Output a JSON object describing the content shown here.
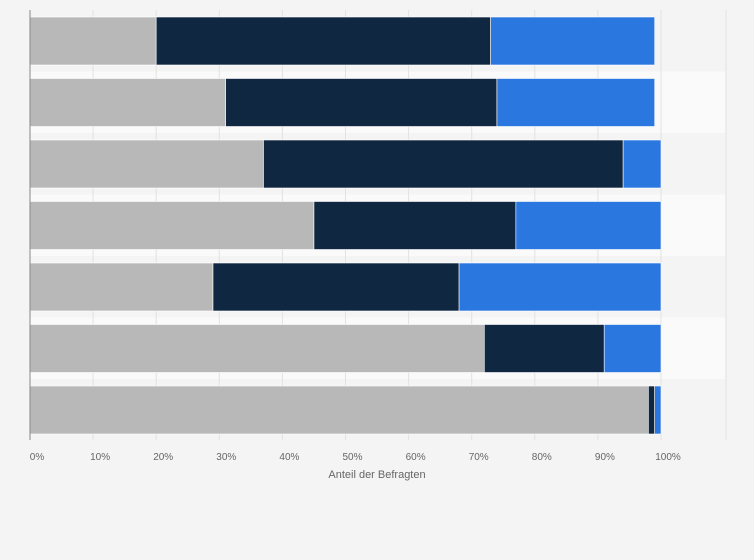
{
  "chart_data": {
    "type": "bar",
    "orientation": "horizontal",
    "stacked": true,
    "categories": [
      "",
      "",
      "",
      "",
      "",
      "",
      ""
    ],
    "series": [
      {
        "color": "#b8b8b8",
        "values": [
          20,
          31,
          37,
          45,
          29,
          72,
          98
        ]
      },
      {
        "color": "#0f2740",
        "values": [
          53,
          43,
          57,
          32,
          39,
          19,
          1
        ]
      },
      {
        "color": "#2b77e0",
        "values": [
          26,
          25,
          6,
          23,
          32,
          9,
          1
        ]
      }
    ],
    "xlim": [
      0,
      100
    ],
    "x_ticks": [
      "0%",
      "10%",
      "20%",
      "30%",
      "40%",
      "50%",
      "60%",
      "70%",
      "80%",
      "90%",
      "100%"
    ],
    "xlabel": "Anteil der Befragten",
    "ylabel": "",
    "grid": true,
    "legend": "none"
  }
}
